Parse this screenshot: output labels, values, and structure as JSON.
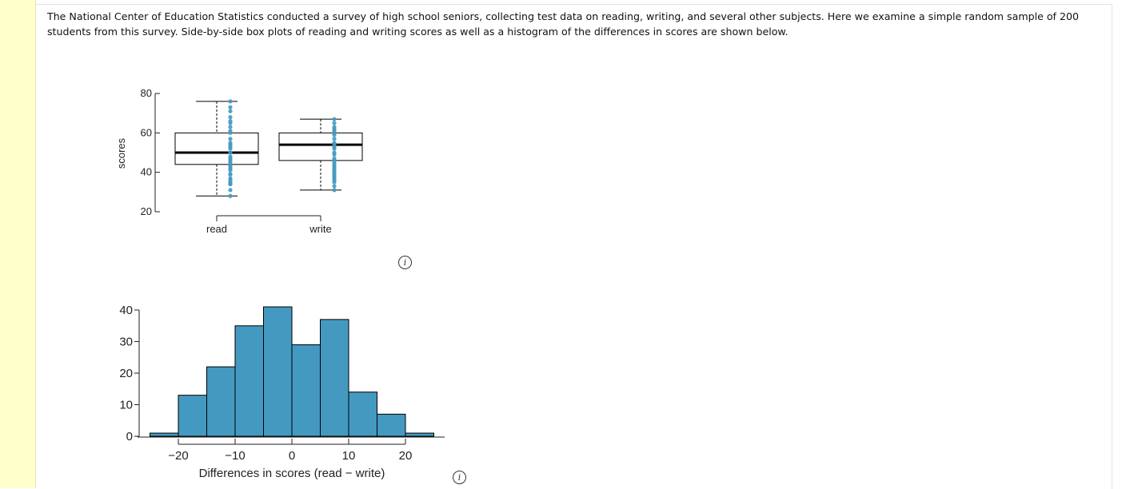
{
  "intro_text": "The National Center of Education Statistics conducted a survey of high school seniors, collecting test data on reading, writing, and several other subjects. Here we examine a simple random sample of 200 students from this survey. Side-by-side box plots of reading and writing scores as well as a histogram of the differences in scores are shown below.",
  "icons": {
    "info": "info-icon",
    "info_glyph": "i"
  },
  "colors": {
    "accent": "#4499c0",
    "box_stroke": "#000000",
    "stripe": "#ffffcc"
  },
  "chart_data": [
    {
      "type": "box",
      "ylabel": "scores",
      "ylim": [
        20,
        80
      ],
      "yticks": [
        "20",
        "40",
        "60",
        "80"
      ],
      "groups": [
        {
          "name": "read",
          "min": 28,
          "q1": 44,
          "median": 50,
          "q3": 60,
          "max": 76,
          "points": [
            28,
            31,
            34,
            34,
            35,
            36,
            37,
            39,
            39,
            41,
            42,
            43,
            44,
            45,
            46,
            47,
            48,
            50,
            52,
            53,
            54,
            55,
            57,
            60,
            61,
            63,
            65,
            66,
            68,
            71,
            73,
            76
          ]
        },
        {
          "name": "write",
          "min": 31,
          "q1": 46,
          "median": 54,
          "q3": 60,
          "max": 67,
          "points": [
            31,
            33,
            35,
            36,
            37,
            38,
            39,
            40,
            41,
            42,
            43,
            44,
            45,
            46,
            47,
            49,
            50,
            52,
            53,
            54,
            55,
            57,
            59,
            60,
            61,
            62,
            63,
            65,
            67
          ]
        }
      ],
      "grid": false
    },
    {
      "type": "histogram",
      "xlabel": "Differences in scores (read − write)",
      "xticks": [
        "−20",
        "−10",
        "0",
        "10",
        "20"
      ],
      "yticks": [
        "0",
        "10",
        "20",
        "30",
        "40"
      ],
      "ylim": [
        0,
        40
      ],
      "bin_edges": [
        -25,
        -20,
        -15,
        -10,
        -5,
        0,
        5,
        10,
        15,
        20,
        25
      ],
      "counts": [
        1,
        13,
        22,
        35,
        41,
        29,
        37,
        14,
        7,
        1
      ],
      "grid": false
    }
  ]
}
